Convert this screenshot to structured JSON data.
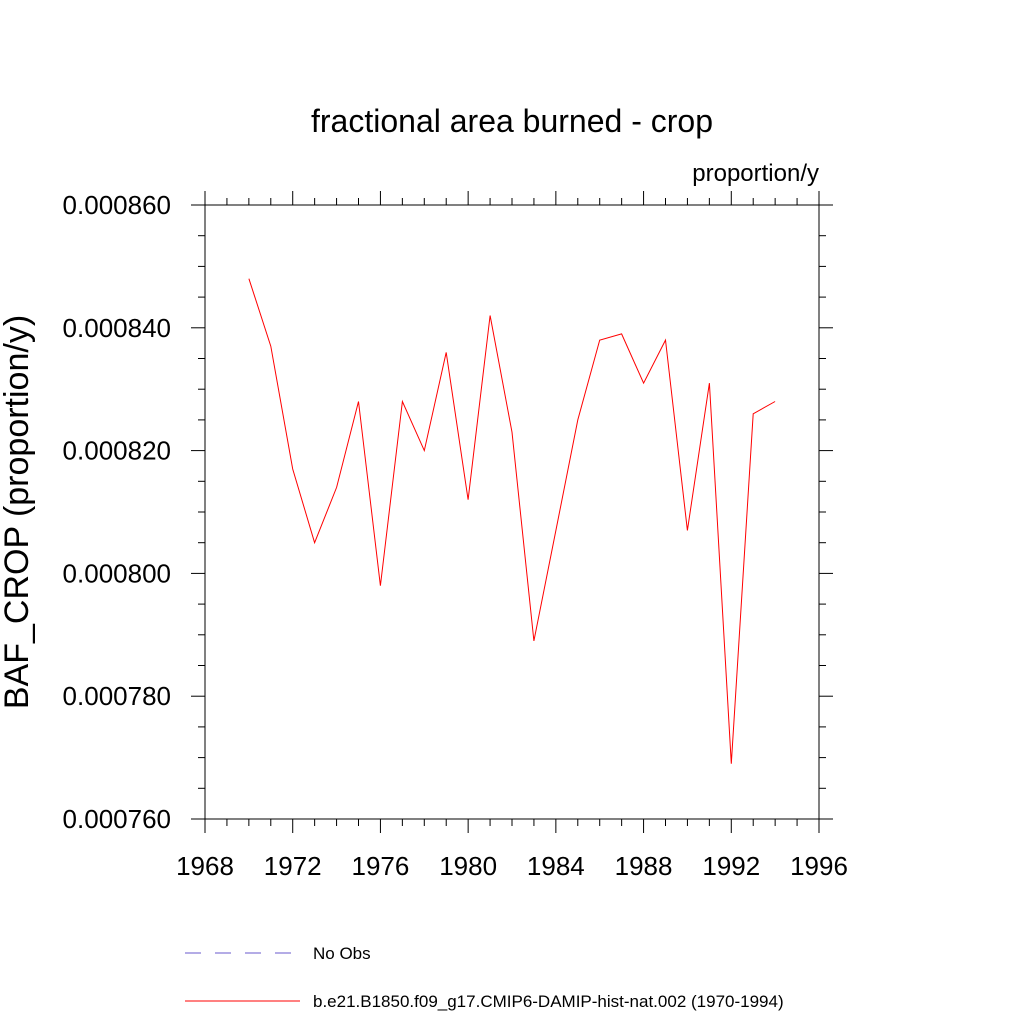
{
  "chart_data": {
    "type": "line",
    "title": "fractional area burned - crop",
    "units": "proportion/y",
    "xlabel": "",
    "ylabel": "BAF_CROP  (proportion/y)",
    "xlim": [
      1968,
      1996
    ],
    "ylim": [
      0.00076,
      0.00086
    ],
    "xticks": [
      "1968",
      "1972",
      "1976",
      "1980",
      "1984",
      "1988",
      "1992",
      "1996"
    ],
    "yticks": [
      "0.000760",
      "0.000780",
      "0.000800",
      "0.000820",
      "0.000840",
      "0.000860"
    ],
    "grid": false,
    "legend_position": "bottom",
    "legend": [
      {
        "label": "No Obs",
        "color": "#6a5acd",
        "dash": "dashed"
      },
      {
        "label": "b.e21.B1850.f09_g17.CMIP6-DAMIP-hist-nat.002 (1970-1994)",
        "color": "#ff0000",
        "dash": "solid"
      }
    ],
    "series": [
      {
        "name": "b.e21.B1850.f09_g17.CMIP6-DAMIP-hist-nat.002 (1970-1994)",
        "color": "#ff0000",
        "x": [
          1970,
          1971,
          1972,
          1973,
          1974,
          1975,
          1976,
          1977,
          1978,
          1979,
          1980,
          1981,
          1982,
          1983,
          1984,
          1985,
          1986,
          1987,
          1988,
          1989,
          1990,
          1991,
          1992,
          1993,
          1994
        ],
        "y": [
          0.000848,
          0.000837,
          0.000817,
          0.000805,
          0.000814,
          0.000828,
          0.000798,
          0.000828,
          0.00082,
          0.000836,
          0.000812,
          0.000842,
          0.000823,
          0.000789,
          0.000807,
          0.000825,
          0.000838,
          0.000839,
          0.000831,
          0.000838,
          0.000807,
          0.000831,
          0.000769,
          0.000826,
          0.000828
        ]
      }
    ]
  }
}
